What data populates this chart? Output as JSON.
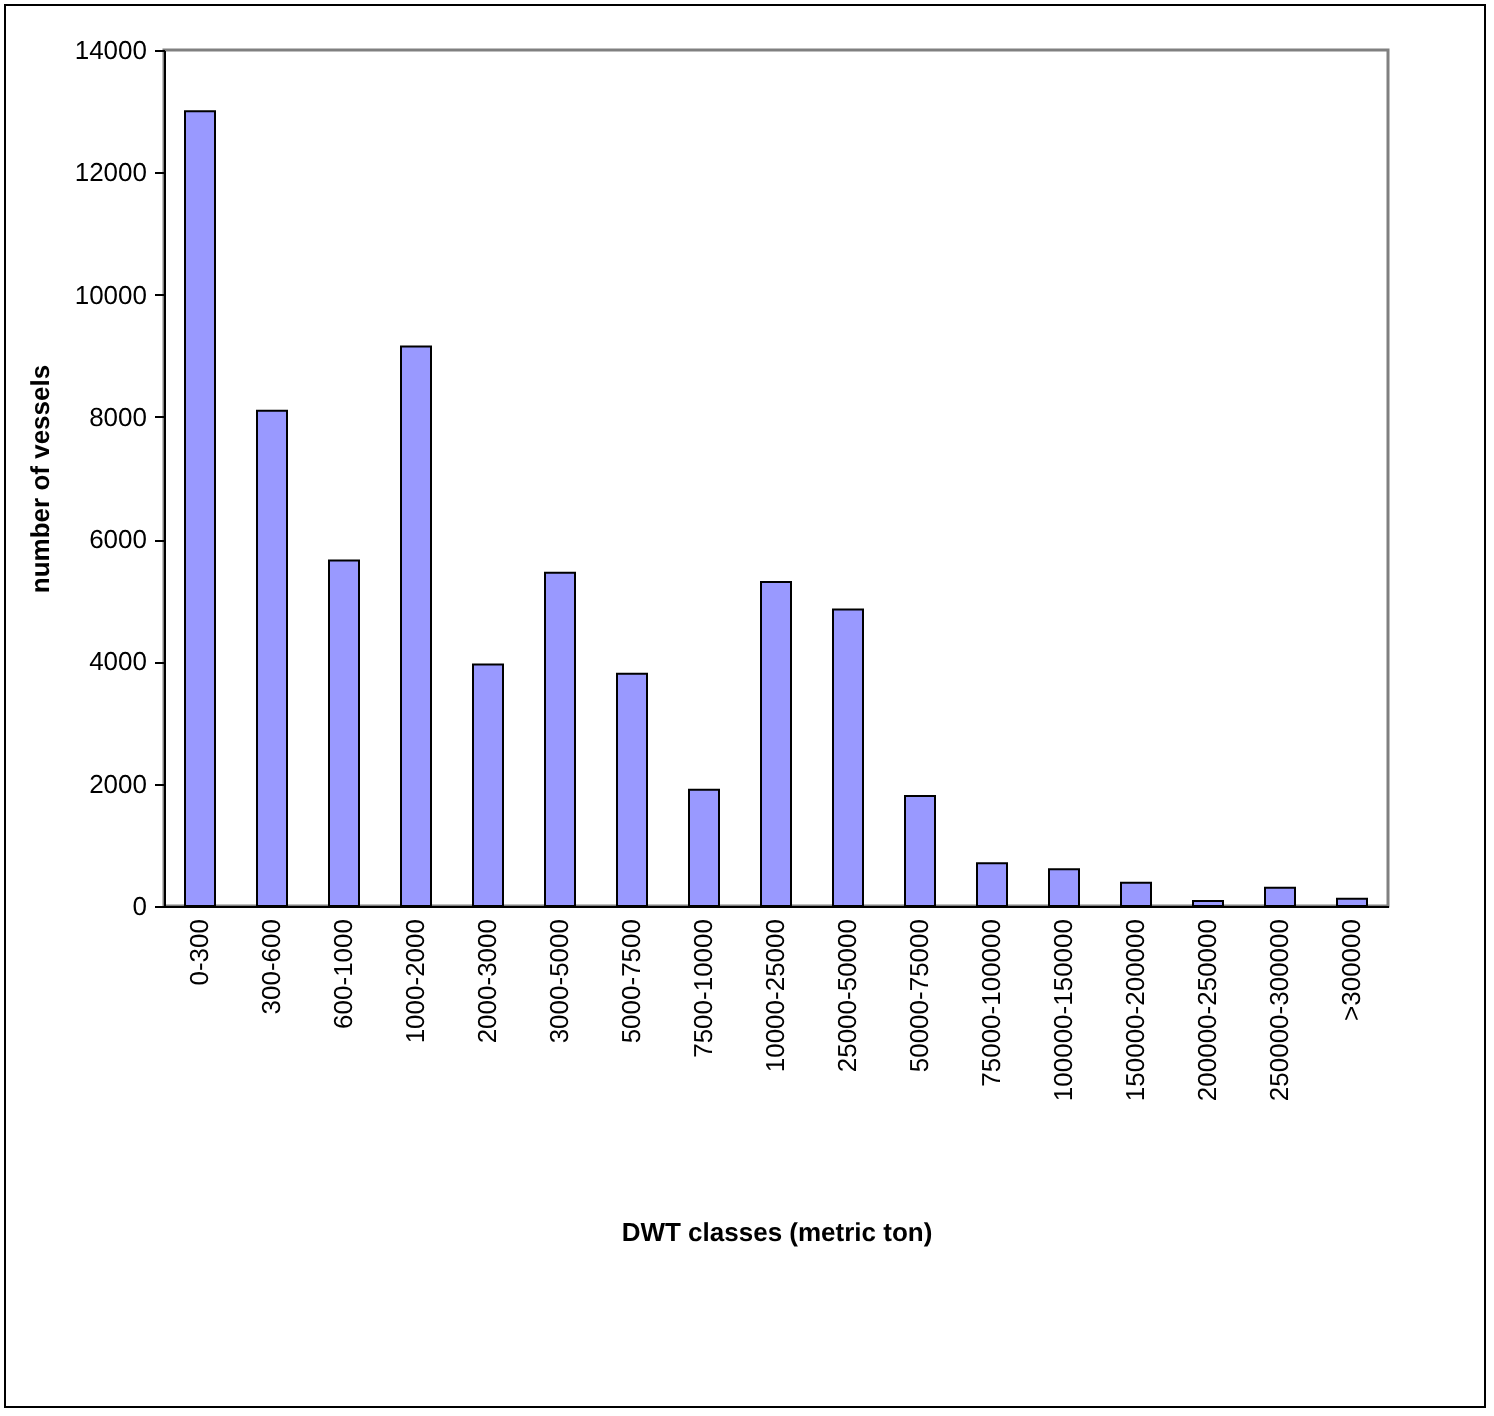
{
  "chart_data": {
    "type": "bar",
    "xlabel": "DWT classes (metric ton)",
    "ylabel": "number of vessels",
    "categories": [
      "0-300",
      "300-600",
      "600-1000",
      "1000-2000",
      "2000-3000",
      "3000-5000",
      "5000-7500",
      "7500-10000",
      "10000-25000",
      "25000-50000",
      "50000-75000",
      "75000-100000",
      "100000-150000",
      "150000-200000",
      "200000-250000",
      "250000-300000",
      ">300000"
    ],
    "values": [
      13000,
      8100,
      5650,
      9150,
      3950,
      5450,
      3800,
      1900,
      5300,
      4850,
      1800,
      700,
      600,
      380,
      80,
      300,
      120
    ],
    "color": "#9999ff",
    "ylim": [
      0,
      14000
    ],
    "yticks": [
      0,
      2000,
      4000,
      6000,
      8000,
      10000,
      12000,
      14000
    ],
    "grid": false
  }
}
